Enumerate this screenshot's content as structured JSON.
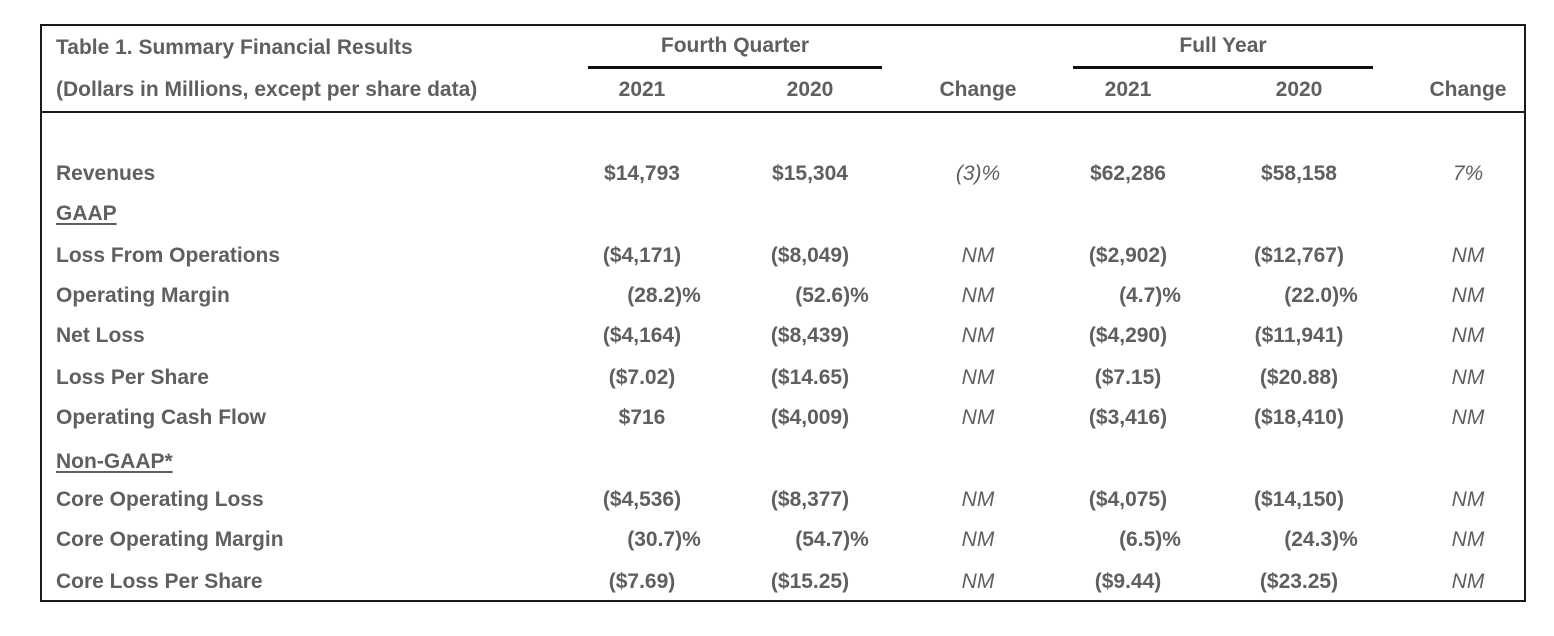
{
  "header": {
    "title": "Table 1. Summary Financial Results",
    "subtitle": "(Dollars in Millions, except per share data)",
    "group_q": "Fourth Quarter",
    "group_fy": "Full Year",
    "col_q21": "2021",
    "col_q20": "2020",
    "col_qchg": "Change",
    "col_fy21": "2021",
    "col_fy20": "2020",
    "col_fychg": "Change"
  },
  "sections": {
    "gaap": "GAAP",
    "nongaap": "Non-GAAP*"
  },
  "rows": [
    {
      "label": "Revenues",
      "q21": "$14,793",
      "q20": "$15,304",
      "qchg": "(3)%",
      "fy21": "$62,286",
      "fy20": "$58,158",
      "fychg": "7%"
    },
    {
      "label": "Loss From Operations",
      "q21": "($4,171)",
      "q20": "($8,049)",
      "qchg": "NM",
      "fy21": "($2,902)",
      "fy20": "($12,767)",
      "fychg": "NM"
    },
    {
      "label": "Operating Margin",
      "q21": "(28.2)%",
      "q20": "(52.6)%",
      "qchg": "NM",
      "fy21": "(4.7)%",
      "fy20": "(22.0)%",
      "fychg": "NM"
    },
    {
      "label": "Net Loss",
      "q21": "($4,164)",
      "q20": "($8,439)",
      "qchg": "NM",
      "fy21": "($4,290)",
      "fy20": "($11,941)",
      "fychg": "NM"
    },
    {
      "label": "Loss Per Share",
      "q21": "($7.02)",
      "q20": "($14.65)",
      "qchg": "NM",
      "fy21": "($7.15)",
      "fy20": "($20.88)",
      "fychg": "NM"
    },
    {
      "label": "Operating Cash Flow",
      "q21": "$716",
      "q20": "($4,009)",
      "qchg": "NM",
      "fy21": "($3,416)",
      "fy20": "($18,410)",
      "fychg": "NM"
    },
    {
      "label": "Core Operating Loss",
      "q21": "($4,536)",
      "q20": "($8,377)",
      "qchg": "NM",
      "fy21": "($4,075)",
      "fy20": "($14,150)",
      "fychg": "NM"
    },
    {
      "label": "Core Operating Margin",
      "q21": "(30.7)%",
      "q20": "(54.7)%",
      "qchg": "NM",
      "fy21": "(6.5)%",
      "fy20": "(24.3)%",
      "fychg": "NM"
    },
    {
      "label": "Core Loss Per Share",
      "q21": "($7.69)",
      "q20": "($15.25)",
      "qchg": "NM",
      "fy21": "($9.44)",
      "fy20": "($23.25)",
      "fychg": "NM"
    }
  ]
}
